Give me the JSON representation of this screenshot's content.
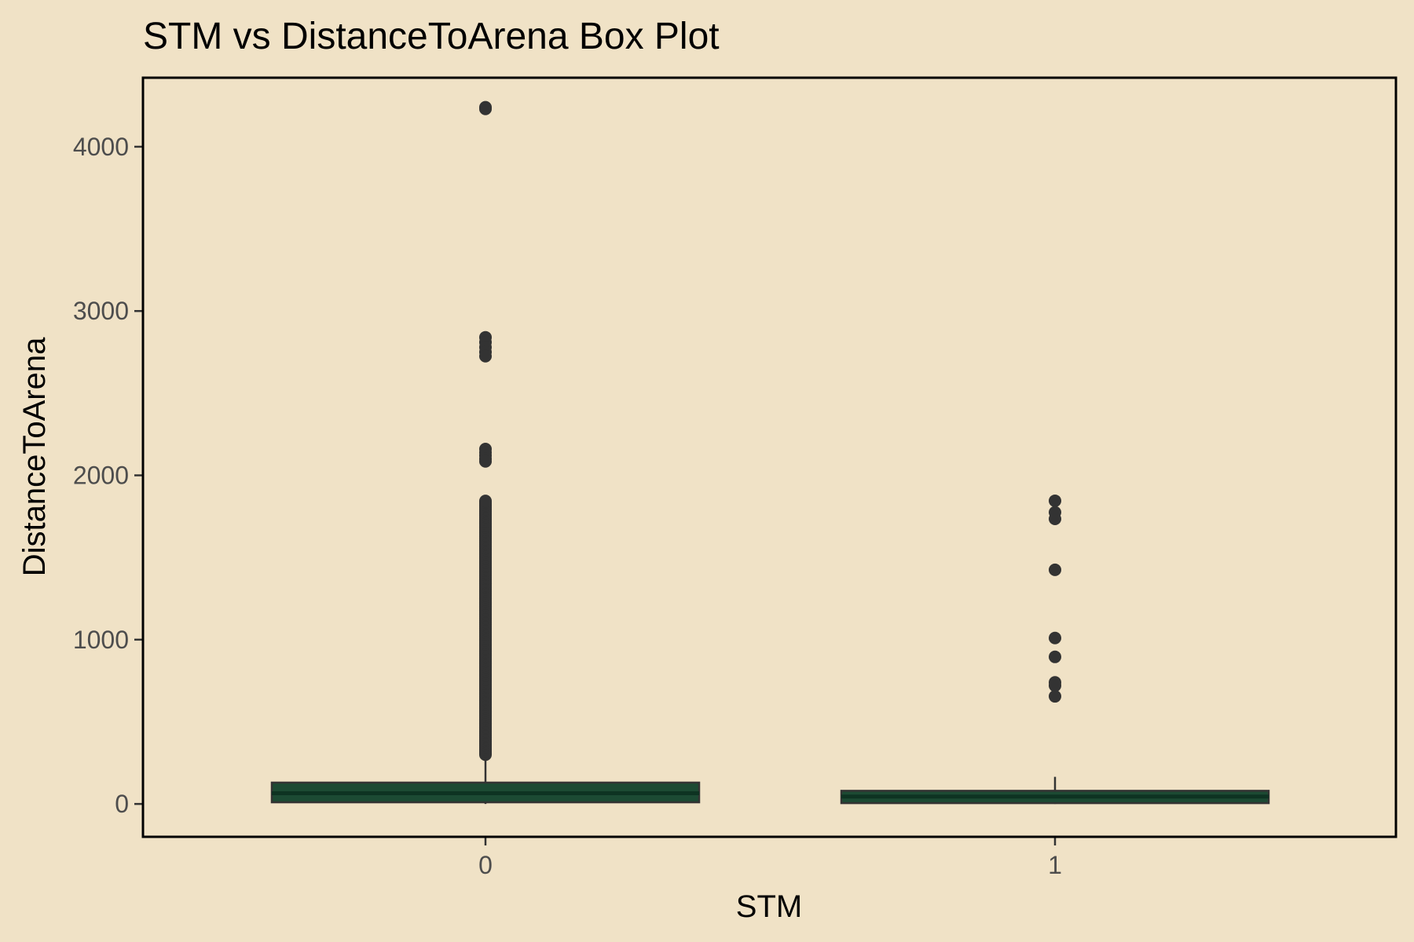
{
  "chart_data": {
    "type": "box",
    "title": "STM vs DistanceToArena Box Plot",
    "xlabel": "STM",
    "ylabel": "DistanceToArena",
    "categories": [
      "0",
      "1"
    ],
    "ylim": [
      -200,
      4420
    ],
    "yticks": [
      0,
      1000,
      2000,
      3000,
      4000
    ],
    "grid": false,
    "colors": {
      "background": "#F0E2C6",
      "box_fill": "#1C4A33",
      "box_stroke": "#333333",
      "median": "#0E3322",
      "outlier": "#333333",
      "panel_border": "#000000"
    },
    "boxes": [
      {
        "category": "0",
        "whisker_low": 0,
        "q1": 10,
        "median": 65,
        "q3": 130,
        "whisker_high": 290,
        "outliers": [
          4240,
          4230,
          2840,
          2810,
          2780,
          2750,
          2725,
          2160,
          2140,
          2120,
          2100,
          2085
        ],
        "outlier_ranges": [
          [
            300,
            1850
          ]
        ]
      },
      {
        "category": "1",
        "whisker_low": 0,
        "q1": 5,
        "median": 45,
        "q3": 80,
        "whisker_high": 165,
        "outliers": [
          1845,
          1775,
          1735,
          1425,
          1010,
          895,
          740,
          720,
          655
        ]
      }
    ]
  }
}
